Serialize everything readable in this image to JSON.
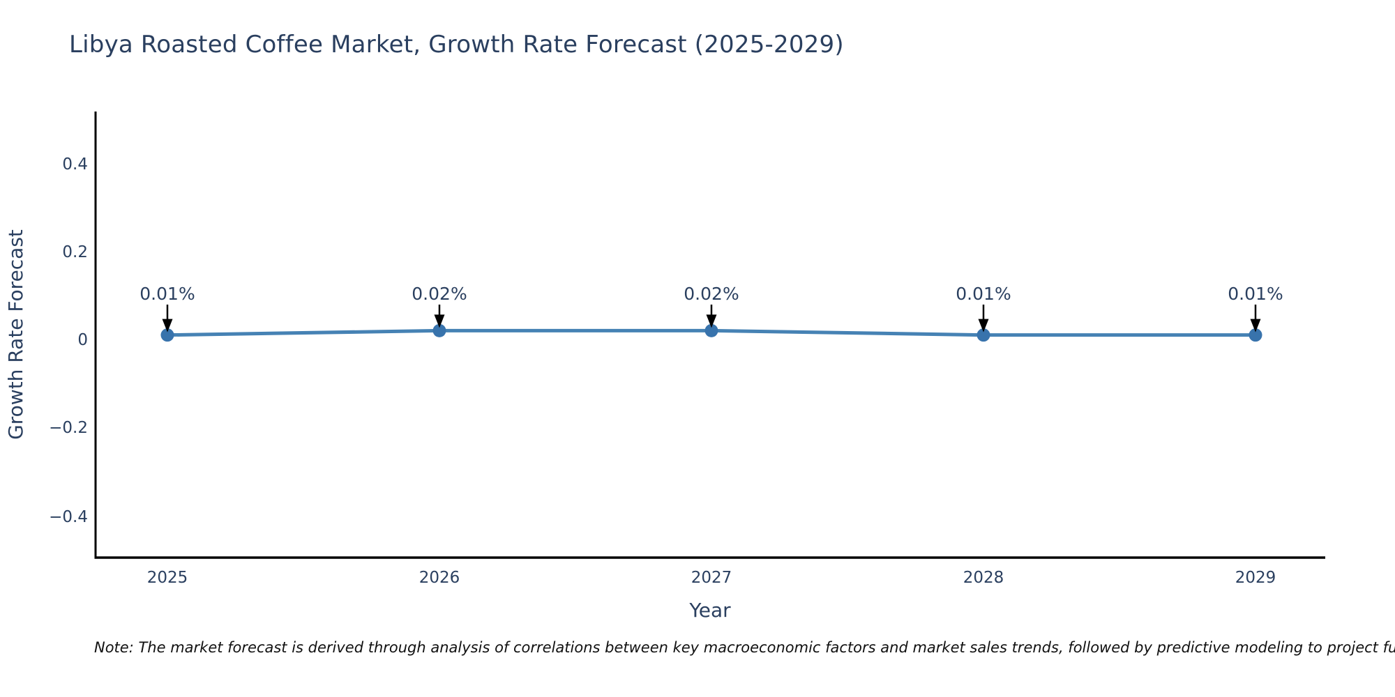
{
  "title": "Libya Roasted Coffee Market, Growth Rate Forecast (2025-2029)",
  "note": {
    "text": "Note: The market forecast is derived through analysis of correlations between key macroeconomic factors and market sales trends, followed by predictive modeling to project future sales."
  },
  "colors": {
    "background": "#ffffff",
    "title_text": "#2a3f5f",
    "axis_text": "#2a3f5f",
    "axis_line": "#000000",
    "line": "#4682b4",
    "marker": "#3873ac",
    "arrow": "#000000",
    "annotation_text": "#2a3f5f",
    "note_text": "#111111"
  },
  "chart_data": {
    "type": "line",
    "title": "Libya Roasted Coffee Market, Growth Rate Forecast (2025-2029)",
    "xlabel": "Year",
    "ylabel": "Growth Rate Forecast",
    "x": [
      2025,
      2026,
      2027,
      2028,
      2029
    ],
    "series": [
      {
        "name": "Growth Rate Forecast",
        "values": [
          0.01,
          0.02,
          0.02,
          0.01,
          0.01
        ],
        "unit": "%"
      }
    ],
    "point_labels": [
      "0.01%",
      "0.02%",
      "0.02%",
      "0.01%",
      "0.01%"
    ],
    "xtick_labels": [
      "2025",
      "2026",
      "2027",
      "2028",
      "2029"
    ],
    "yticks": [
      0.4,
      0.2,
      0,
      -0.2,
      -0.4
    ],
    "ytick_labels": [
      "0.4",
      "0.2",
      "0",
      "−0.2",
      "−0.4"
    ],
    "ylim": [
      -0.49,
      0.52
    ],
    "grid": false,
    "legend": "none",
    "markers": true,
    "annotations_have_arrows": true
  }
}
